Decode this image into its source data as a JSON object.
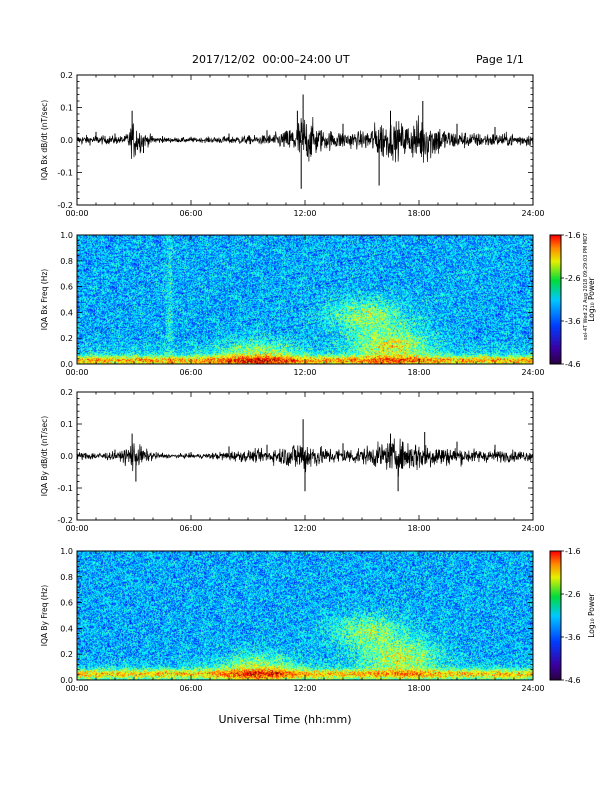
{
  "page": {
    "title": "2017/12/02  00:00–24:00 UT",
    "page_number": "Page 1/1",
    "side_note": "sol-4T Wed 22 Aug 2018 09:29:03 PM MDT"
  },
  "chart_data": [
    {
      "type": "line",
      "ylabel": "IQA Bx dB/dt (nT/sec)",
      "xlim": [
        0,
        24
      ],
      "ylim": [
        -0.2,
        0.2
      ],
      "x_ticks": [
        "00:00",
        "06:00",
        "12:00",
        "18:00",
        "24:00"
      ],
      "y_ticks": [
        "-0.2",
        "-0.1",
        "0.0",
        "0.1",
        "0.2"
      ],
      "series": [
        {
          "values": [
            {
              "x": 0,
              "y": 0.03
            },
            {
              "x": 1,
              "y": 0.025
            },
            {
              "x": 2,
              "y": 0.02
            },
            {
              "x": 2.9,
              "y": 0.09
            },
            {
              "x": 3.5,
              "y": -0.04
            },
            {
              "x": 4.5,
              "y": 0.012
            },
            {
              "x": 6,
              "y": 0.01
            },
            {
              "x": 8,
              "y": 0.02
            },
            {
              "x": 10,
              "y": 0.03
            },
            {
              "x": 11.6,
              "y": 0.09
            },
            {
              "x": 11.9,
              "y": 0.14
            },
            {
              "x": 11.8,
              "y": -0.15
            },
            {
              "x": 14,
              "y": 0.05
            },
            {
              "x": 15.9,
              "y": -0.14
            },
            {
              "x": 16.5,
              "y": 0.09
            },
            {
              "x": 18.2,
              "y": 0.12
            },
            {
              "x": 20,
              "y": 0.05
            },
            {
              "x": 22,
              "y": 0.04
            },
            {
              "x": 24,
              "y": 0.03
            }
          ]
        }
      ],
      "noise_envelope": [
        {
          "x": 0,
          "a": 0.014
        },
        {
          "x": 2.5,
          "a": 0.012
        },
        {
          "x": 3.0,
          "a": 0.06
        },
        {
          "x": 3.6,
          "a": 0.02
        },
        {
          "x": 4.5,
          "a": 0.008
        },
        {
          "x": 6.5,
          "a": 0.007
        },
        {
          "x": 8,
          "a": 0.012
        },
        {
          "x": 10,
          "a": 0.015
        },
        {
          "x": 11,
          "a": 0.03
        },
        {
          "x": 11.9,
          "a": 0.08
        },
        {
          "x": 13,
          "a": 0.03
        },
        {
          "x": 15,
          "a": 0.025
        },
        {
          "x": 16,
          "a": 0.06
        },
        {
          "x": 17.5,
          "a": 0.05
        },
        {
          "x": 18.2,
          "a": 0.08
        },
        {
          "x": 19.5,
          "a": 0.03
        },
        {
          "x": 21,
          "a": 0.022
        },
        {
          "x": 24,
          "a": 0.018
        }
      ],
      "line_color": "#000000"
    },
    {
      "type": "heatmap",
      "ylabel": "IQA Bx Freq (Hz)",
      "xlim": [
        0,
        24
      ],
      "ylim": [
        0.0,
        1.0
      ],
      "x_ticks": [
        "00:00",
        "06:00",
        "12:00",
        "18:00",
        "24:00"
      ],
      "y_ticks": [
        "0.0",
        "0.2",
        "0.4",
        "0.6",
        "0.8",
        "1.0"
      ],
      "colorbar": {
        "label": "Log₁₀ Power",
        "range": [
          -4.6,
          -1.6
        ],
        "ticks": [
          "-1.6",
          "-2.6",
          "-3.6",
          "-4.6"
        ]
      },
      "features": [
        {
          "kind": "vertical-stripe",
          "x": 4.85,
          "intensity": 0.6
        },
        {
          "kind": "low-freq-band",
          "from": 0,
          "to": 24,
          "freq": 0.03,
          "intensity": 0.75
        },
        {
          "kind": "hotspot",
          "x": 16.5,
          "freq": 0.15,
          "intensity": 0.85
        },
        {
          "kind": "hotspot",
          "x": 15.2,
          "freq": 0.38,
          "intensity": 0.7
        },
        {
          "kind": "hotspot",
          "x": 9.5,
          "freq": 0.06,
          "intensity": 0.7
        }
      ]
    },
    {
      "type": "line",
      "ylabel": "IQA By dB/dt (nT/sec)",
      "xlim": [
        0,
        24
      ],
      "ylim": [
        -0.2,
        0.2
      ],
      "x_ticks": [
        "00:00",
        "06:00",
        "12:00",
        "18:00",
        "24:00"
      ],
      "y_ticks": [
        "-0.2",
        "-0.1",
        "0.0",
        "0.1",
        "0.2"
      ],
      "series": [
        {
          "values": [
            {
              "x": 0,
              "y": 0.015
            },
            {
              "x": 2,
              "y": 0.02
            },
            {
              "x": 2.9,
              "y": 0.07
            },
            {
              "x": 3.1,
              "y": -0.08
            },
            {
              "x": 4.5,
              "y": 0.01
            },
            {
              "x": 6,
              "y": 0.012
            },
            {
              "x": 8,
              "y": 0.03
            },
            {
              "x": 10,
              "y": 0.035
            },
            {
              "x": 11.9,
              "y": 0.115
            },
            {
              "x": 12.0,
              "y": -0.11
            },
            {
              "x": 14,
              "y": 0.04
            },
            {
              "x": 16.5,
              "y": 0.07
            },
            {
              "x": 16.9,
              "y": -0.11
            },
            {
              "x": 18.3,
              "y": 0.075
            },
            {
              "x": 20,
              "y": 0.045
            },
            {
              "x": 22,
              "y": 0.035
            },
            {
              "x": 24,
              "y": 0.025
            }
          ]
        }
      ],
      "noise_envelope": [
        {
          "x": 0,
          "a": 0.012
        },
        {
          "x": 2.3,
          "a": 0.012
        },
        {
          "x": 2.9,
          "a": 0.05
        },
        {
          "x": 3.6,
          "a": 0.02
        },
        {
          "x": 4.5,
          "a": 0.006
        },
        {
          "x": 6.5,
          "a": 0.007
        },
        {
          "x": 8,
          "a": 0.015
        },
        {
          "x": 10,
          "a": 0.02
        },
        {
          "x": 11,
          "a": 0.03
        },
        {
          "x": 11.9,
          "a": 0.055
        },
        {
          "x": 13,
          "a": 0.025
        },
        {
          "x": 15,
          "a": 0.025
        },
        {
          "x": 16.8,
          "a": 0.05
        },
        {
          "x": 18,
          "a": 0.045
        },
        {
          "x": 19.5,
          "a": 0.028
        },
        {
          "x": 21,
          "a": 0.02
        },
        {
          "x": 24,
          "a": 0.016
        }
      ],
      "line_color": "#000000"
    },
    {
      "type": "heatmap",
      "ylabel": "IQA By Freq (Hz)",
      "xlim": [
        0,
        24
      ],
      "ylim": [
        0.0,
        1.0
      ],
      "x_ticks": [
        "00:00",
        "06:00",
        "12:00",
        "18:00",
        "24:00"
      ],
      "y_ticks": [
        "0.0",
        "0.2",
        "0.4",
        "0.6",
        "0.8",
        "1.0"
      ],
      "xlabel": "Universal Time (hh:mm)",
      "colorbar": {
        "label": "Log₁₀ Power",
        "range": [
          -4.6,
          -1.6
        ],
        "ticks": [
          "-1.6",
          "-2.6",
          "-3.6",
          "-4.6"
        ]
      },
      "features": [
        {
          "kind": "low-freq-band",
          "from": 0,
          "to": 24,
          "freq": 0.05,
          "intensity": 0.7
        },
        {
          "kind": "hotspot",
          "x": 9.5,
          "freq": 0.08,
          "intensity": 0.75
        },
        {
          "kind": "hotspot",
          "x": 17.0,
          "freq": 0.18,
          "intensity": 0.8
        },
        {
          "kind": "hotspot",
          "x": 15.3,
          "freq": 0.38,
          "intensity": 0.65
        }
      ]
    }
  ]
}
